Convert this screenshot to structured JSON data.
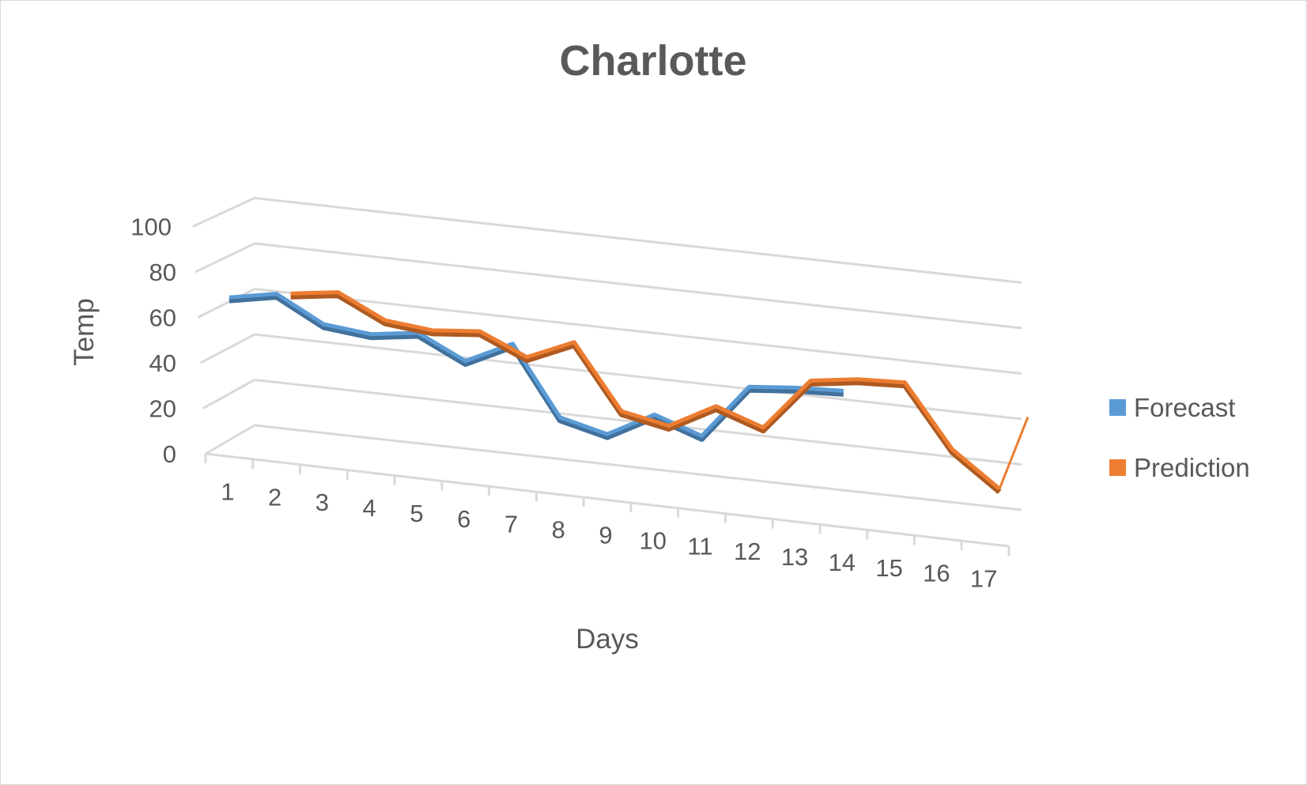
{
  "chart_data": {
    "type": "line",
    "title": "Charlotte",
    "xlabel": "Days",
    "ylabel": "Temp",
    "categories": [
      "1",
      "2",
      "3",
      "4",
      "5",
      "6",
      "7",
      "8",
      "9",
      "10",
      "11",
      "12",
      "13",
      "14",
      "15",
      "16",
      "17"
    ],
    "ylim": [
      0,
      100
    ],
    "yticks": [
      "0",
      "20",
      "40",
      "60",
      "80",
      "100"
    ],
    "grid": true,
    "legend_position": "right",
    "series": [
      {
        "name": "Forecast",
        "color": "#5b9bd5",
        "values": [
          70,
          74,
          63,
          61,
          64,
          54,
          64,
          34,
          29,
          40,
          33,
          57,
          59,
          60,
          null,
          null,
          null
        ]
      },
      {
        "name": "Prediction",
        "color": "#ed7d31",
        "values": [
          null,
          72,
          75,
          65,
          63,
          65,
          56,
          65,
          37,
          33,
          44,
          37,
          60,
          63,
          64,
          37,
          22
        ]
      }
    ],
    "extra": {
      "end_value_17_to": 55
    }
  }
}
